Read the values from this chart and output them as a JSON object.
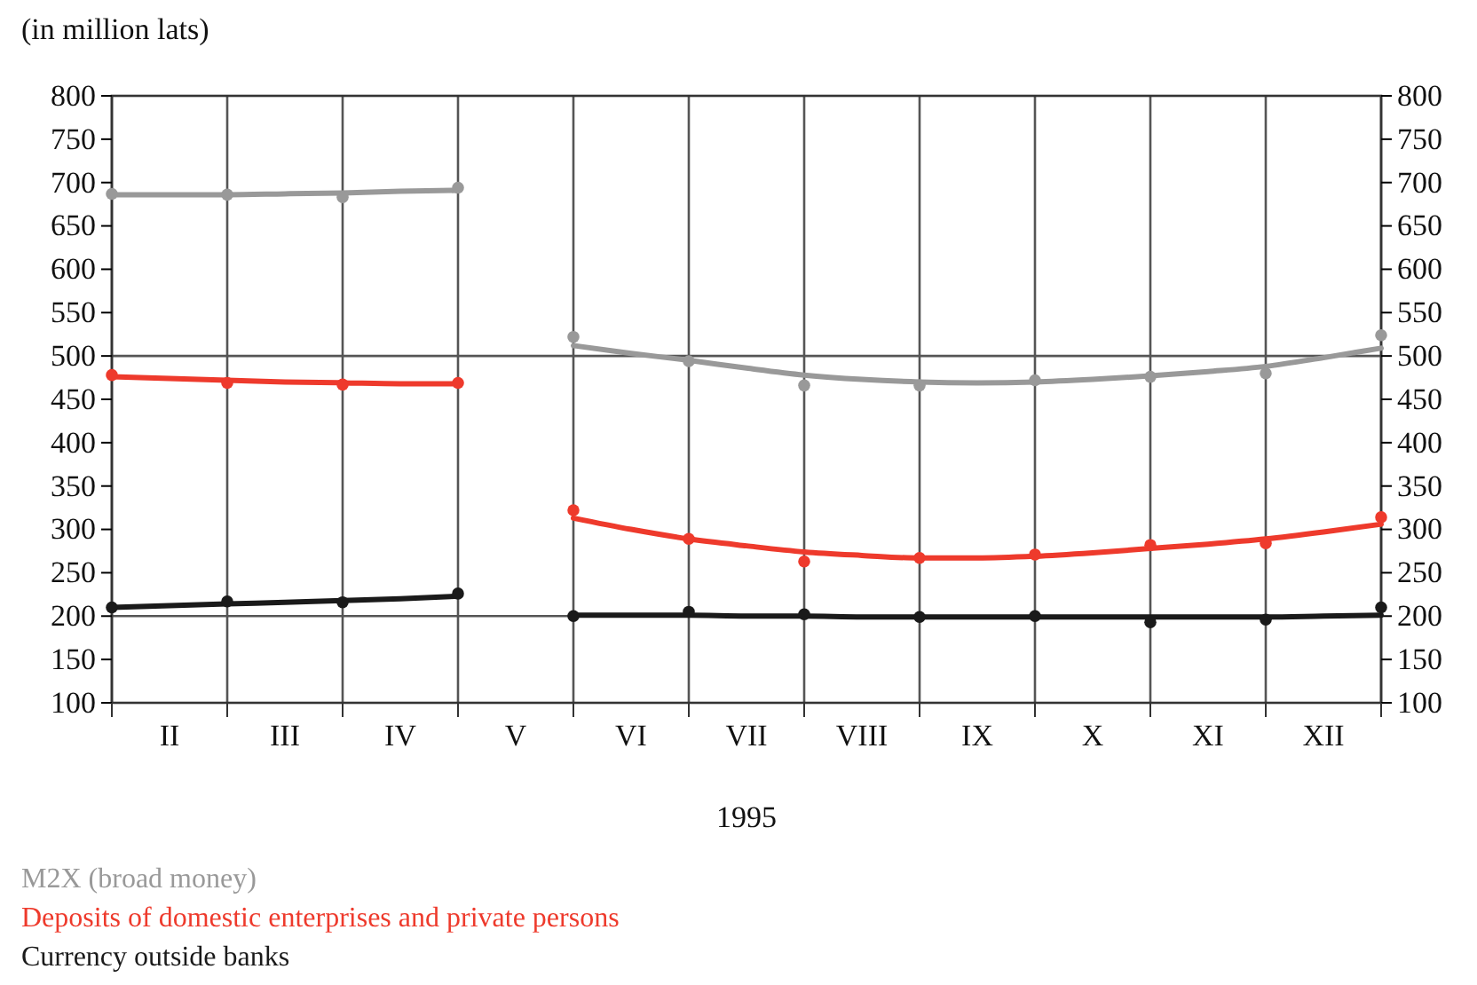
{
  "chart_data": {
    "type": "scatter",
    "ylabel": "(in million lats)",
    "xlabel": "1995",
    "categories": [
      null,
      "II",
      null,
      "III",
      null,
      "IV",
      null,
      "V",
      null,
      "VI",
      null,
      "VII",
      null,
      "VIII",
      null,
      "IX",
      null,
      "X",
      null,
      "XI",
      null,
      "XII",
      null
    ],
    "ylim": [
      100,
      800
    ],
    "yticks": [
      100,
      150,
      200,
      250,
      300,
      350,
      400,
      450,
      500,
      550,
      600,
      650,
      700,
      750,
      800
    ],
    "y2lim": [
      100,
      800
    ],
    "y2ticks": [
      100,
      150,
      200,
      250,
      300,
      350,
      400,
      450,
      500,
      550,
      600,
      650,
      700,
      750,
      800
    ],
    "grid": "x",
    "legend": "bottom",
    "ref_lines": [
      {
        "axis": "y",
        "value": 200,
        "color": "#555555"
      },
      {
        "axis": "y",
        "value": 500,
        "color": "#555555"
      }
    ],
    "series": [
      {
        "name": "M2X (broad money)",
        "color": "#999999",
        "marker": "circle",
        "values": [
          687,
          null,
          686,
          null,
          683,
          null,
          694,
          null,
          522,
          null,
          494,
          null,
          466,
          null,
          466,
          null,
          472,
          null,
          476,
          null,
          480,
          null,
          524
        ]
      },
      {
        "name": "Deposits of domestic enterprises and private persons",
        "color": "#ee3a2c",
        "marker": "circle",
        "values": [
          478,
          null,
          469,
          null,
          467,
          null,
          469,
          null,
          322,
          null,
          289,
          null,
          263,
          null,
          267,
          null,
          271,
          null,
          282,
          null,
          284,
          null,
          314
        ]
      },
      {
        "name": "Currency outside banks",
        "color": "#1a1a1a",
        "marker": "circle",
        "values": [
          210,
          null,
          217,
          null,
          216,
          null,
          226,
          null,
          200,
          null,
          205,
          null,
          202,
          null,
          199,
          null,
          200,
          null,
          193,
          null,
          196,
          null,
          210
        ]
      },
      {
        "type": "line",
        "marker": "none",
        "color": "#999999",
        "values": [
          686,
          686,
          686,
          687,
          688,
          690,
          691,
          null,
          512,
          503,
          495,
          486,
          478,
          473,
          470,
          469,
          470,
          473,
          477,
          482,
          488,
          498,
          509
        ]
      },
      {
        "type": "line",
        "marker": "none",
        "color": "#ee3a2c",
        "values": [
          476,
          474,
          472,
          470,
          469,
          468,
          468,
          null,
          313,
          300,
          289,
          281,
          274,
          270,
          267,
          267,
          269,
          273,
          278,
          283,
          289,
          297,
          306
        ]
      },
      {
        "type": "line",
        "marker": "none",
        "color": "#1a1a1a",
        "values": [
          210,
          212,
          214,
          216,
          218,
          220,
          223,
          null,
          201,
          201,
          201,
          200,
          200,
          199,
          199,
          199,
          199,
          199,
          199,
          199,
          199,
          200,
          201
        ]
      }
    ]
  }
}
